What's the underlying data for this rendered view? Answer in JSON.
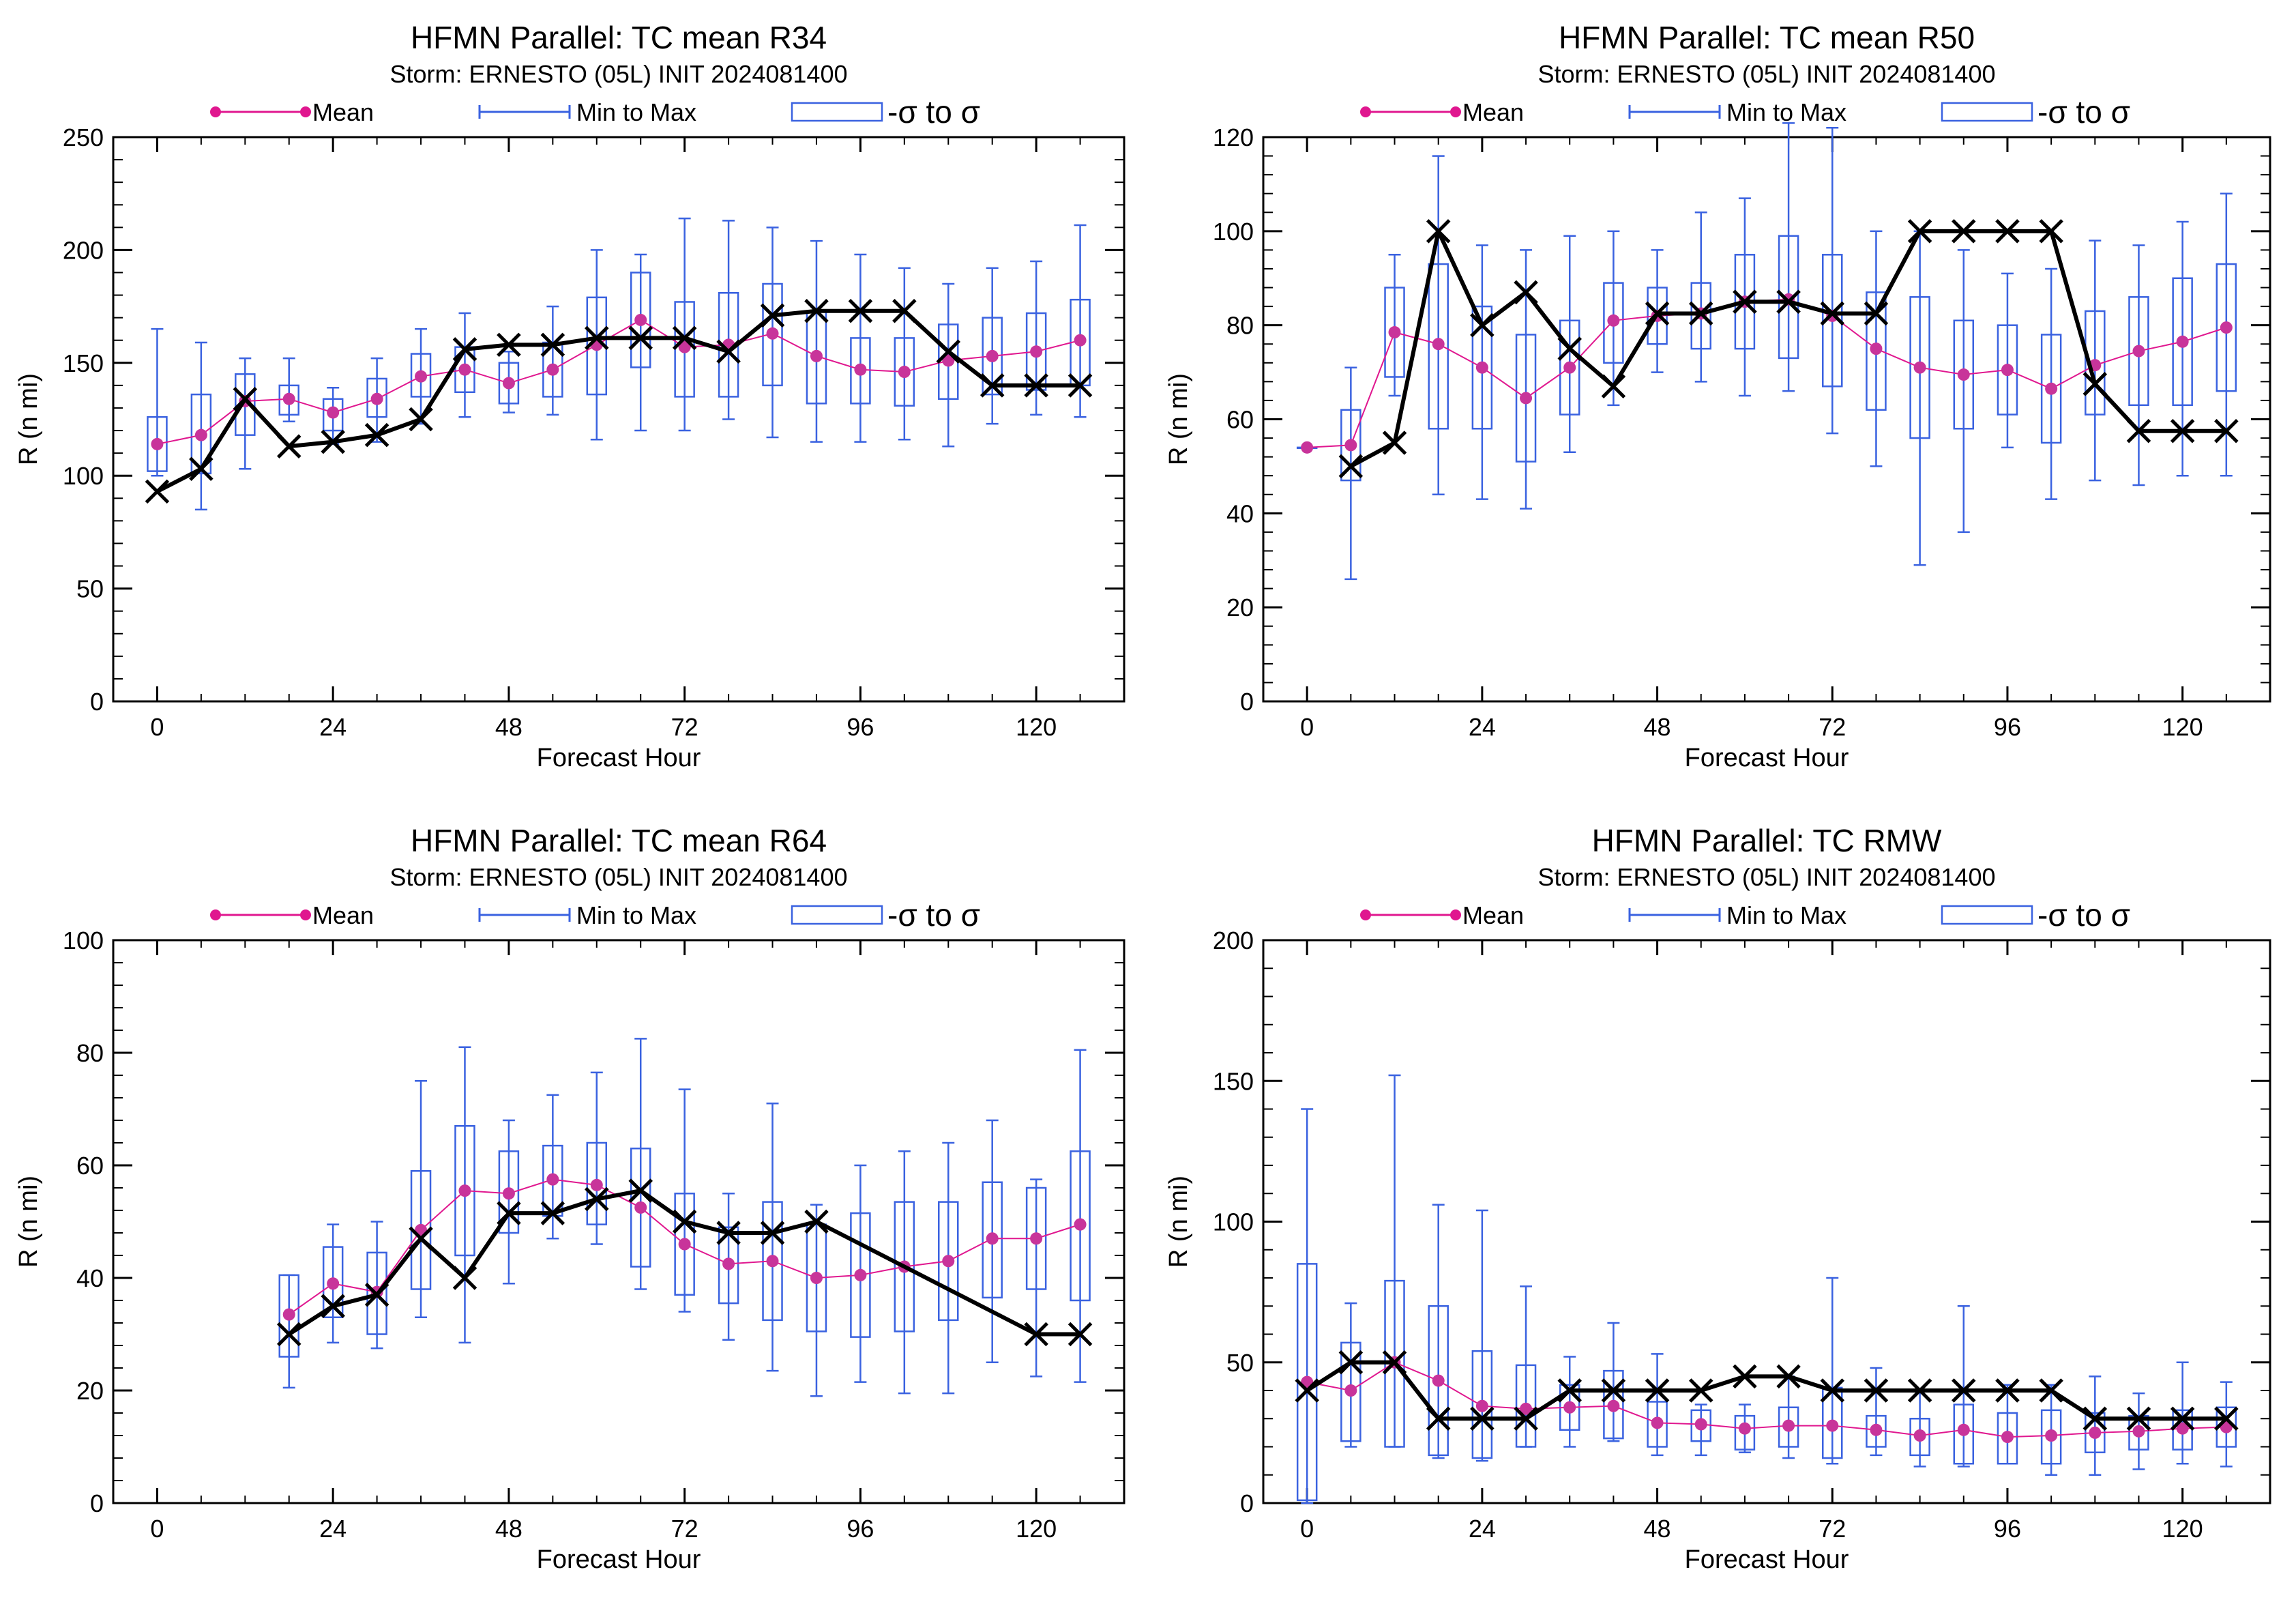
{
  "colors": {
    "mean": "#e0178f",
    "mean_marker": "#c8349a",
    "range": "#3a62e0",
    "best_track": "#000000",
    "axes": "#000000"
  },
  "legend": {
    "mean": "Mean",
    "range": "Min to Max",
    "sigma": "-σ to σ"
  },
  "chart_data": [
    {
      "type": "box",
      "title": "HFMN Parallel: TC mean R34",
      "subtitle": "Storm: ERNESTO (05L) INIT 2024081400",
      "xlabel": "Forecast Hour",
      "ylabel": "R (n mi)",
      "xlim": [
        -6,
        132
      ],
      "ylim": [
        0,
        250
      ],
      "xticks": [
        0,
        24,
        48,
        72,
        96,
        120
      ],
      "yticks": [
        0,
        50,
        100,
        150,
        200,
        250
      ],
      "series": {
        "mean": {
          "x": [
            0,
            6,
            12,
            18,
            24,
            30,
            36,
            42,
            48,
            54,
            60,
            66,
            72,
            78,
            84,
            90,
            96,
            102,
            108,
            114,
            120,
            126
          ],
          "y": [
            114,
            118,
            133,
            134,
            128,
            134,
            144,
            147,
            141,
            147,
            158,
            169,
            157,
            158,
            163,
            153,
            147,
            146,
            151,
            153,
            155,
            160
          ]
        },
        "range": {
          "x": [
            0,
            6,
            12,
            18,
            24,
            30,
            36,
            42,
            48,
            54,
            60,
            66,
            72,
            78,
            84,
            90,
            96,
            102,
            108,
            114,
            120,
            126
          ],
          "min": [
            100,
            85,
            103,
            124,
            114,
            115,
            123,
            126,
            128,
            127,
            116,
            120,
            120,
            125,
            117,
            115,
            115,
            116,
            113,
            123,
            127,
            126
          ],
          "max": [
            165,
            159,
            152,
            152,
            139,
            152,
            165,
            172,
            155,
            175,
            200,
            198,
            214,
            213,
            210,
            204,
            198,
            192,
            185,
            192,
            195,
            211
          ]
        },
        "sigma": {
          "x": [
            0,
            6,
            12,
            18,
            24,
            30,
            36,
            42,
            48,
            54,
            60,
            66,
            72,
            78,
            84,
            90,
            96,
            102,
            108,
            114,
            120,
            126
          ],
          "low": [
            102,
            101,
            118,
            127,
            120,
            126,
            135,
            137,
            132,
            135,
            136,
            148,
            135,
            135,
            140,
            132,
            132,
            131,
            134,
            136,
            138,
            140
          ],
          "high": [
            126,
            136,
            145,
            140,
            134,
            143,
            154,
            157,
            150,
            159,
            179,
            190,
            177,
            181,
            185,
            173,
            161,
            161,
            167,
            170,
            172,
            178
          ]
        },
        "best_track": {
          "x": [
            0,
            6,
            12,
            18,
            24,
            30,
            36,
            42,
            48,
            54,
            60,
            66,
            72,
            78,
            84,
            90,
            96,
            102,
            108,
            114,
            120,
            126
          ],
          "y": [
            93,
            103,
            134,
            113,
            115,
            118,
            125,
            156,
            158,
            158,
            161,
            161,
            161,
            155,
            171,
            173,
            173,
            173,
            155,
            140,
            140,
            140
          ]
        }
      }
    },
    {
      "type": "box",
      "title": "HFMN Parallel: TC mean R50",
      "subtitle": "Storm: ERNESTO (05L) INIT 2024081400",
      "xlabel": "Forecast Hour",
      "ylabel": "R (n mi)",
      "xlim": [
        -6,
        132
      ],
      "ylim": [
        0,
        120
      ],
      "xticks": [
        0,
        24,
        48,
        72,
        96,
        120
      ],
      "yticks": [
        0,
        20,
        40,
        60,
        80,
        100,
        120
      ],
      "series": {
        "mean": {
          "x": [
            0,
            6,
            12,
            18,
            24,
            30,
            36,
            42,
            48,
            54,
            60,
            66,
            72,
            78,
            84,
            90,
            96,
            102,
            108,
            114,
            120,
            126
          ],
          "y": [
            54,
            54.5,
            78.5,
            76,
            71,
            64.5,
            71,
            81,
            82,
            82.5,
            85,
            85.5,
            82,
            75,
            71,
            69.5,
            70.5,
            66.5,
            71.5,
            74.5,
            76.5,
            79.5
          ]
        },
        "range": {
          "x": [
            0,
            6,
            12,
            18,
            24,
            30,
            36,
            42,
            48,
            54,
            60,
            66,
            72,
            78,
            84,
            90,
            96,
            102,
            108,
            114,
            120,
            126
          ],
          "min": [
            54,
            26,
            65,
            44,
            43,
            41,
            53,
            63,
            70,
            68,
            65,
            66,
            57,
            50,
            29,
            36,
            54,
            43,
            47,
            46,
            48,
            48
          ],
          "max": [
            54,
            71,
            95,
            116,
            97,
            96,
            99,
            100,
            96,
            104,
            107,
            123,
            122,
            100,
            100,
            96,
            91,
            92,
            98,
            97,
            102,
            108
          ]
        },
        "sigma": {
          "x": [
            0,
            6,
            12,
            18,
            24,
            30,
            36,
            42,
            48,
            54,
            60,
            66,
            72,
            78,
            84,
            90,
            96,
            102,
            108,
            114,
            120,
            126
          ],
          "low": [
            54,
            47,
            69,
            58,
            58,
            51,
            61,
            72,
            76,
            75,
            75,
            73,
            67,
            62,
            56,
            58,
            61,
            55,
            61,
            63,
            63,
            66
          ],
          "high": [
            54,
            62,
            88,
            93,
            84,
            78,
            81,
            89,
            88,
            89,
            95,
            99,
            95,
            87,
            86,
            81,
            80,
            78,
            83,
            86,
            90,
            93
          ]
        },
        "best_track": {
          "x": [
            6,
            12,
            18,
            24,
            30,
            36,
            42,
            48,
            54,
            60,
            66,
            72,
            78,
            84,
            90,
            96,
            102,
            108,
            114,
            120,
            126
          ],
          "y": [
            50,
            55,
            100,
            80,
            87,
            75,
            67,
            82.5,
            82.5,
            85,
            85,
            82.5,
            82.5,
            100,
            100,
            100,
            100,
            67.5,
            57.5,
            57.5,
            57.5
          ]
        }
      }
    },
    {
      "type": "box",
      "title": "HFMN Parallel: TC mean R64",
      "subtitle": "Storm: ERNESTO (05L) INIT 2024081400",
      "xlabel": "Forecast Hour",
      "ylabel": "R (n mi)",
      "xlim": [
        -6,
        132
      ],
      "ylim": [
        0,
        100
      ],
      "xticks": [
        0,
        24,
        48,
        72,
        96,
        120
      ],
      "yticks": [
        0,
        20,
        40,
        60,
        80,
        100
      ],
      "series": {
        "mean": {
          "x": [
            18,
            24,
            30,
            36,
            42,
            48,
            54,
            60,
            66,
            72,
            78,
            84,
            90,
            96,
            102,
            108,
            114,
            120,
            126
          ],
          "y": [
            33.5,
            39,
            37.5,
            48.5,
            55.5,
            55,
            57.5,
            56.5,
            52.5,
            46,
            42.5,
            43,
            40,
            40.5,
            42,
            43,
            47,
            47,
            49.5
          ]
        },
        "range": {
          "x": [
            18,
            24,
            30,
            36,
            42,
            48,
            54,
            60,
            66,
            72,
            78,
            84,
            90,
            96,
            102,
            108,
            114,
            120,
            126
          ],
          "min": [
            20.5,
            28.5,
            27.5,
            33,
            28.5,
            39,
            47,
            46,
            38,
            34,
            29,
            23.5,
            19,
            21.5,
            19.5,
            19.5,
            25,
            22.5,
            21.5
          ],
          "max": [
            40.5,
            49.5,
            50,
            75,
            81,
            68,
            72.5,
            76.5,
            82.5,
            73.5,
            55,
            71,
            53,
            60,
            62.5,
            64,
            68,
            57.5,
            80.5
          ]
        },
        "sigma": {
          "x": [
            18,
            24,
            30,
            36,
            42,
            48,
            54,
            60,
            66,
            72,
            78,
            84,
            90,
            96,
            102,
            108,
            114,
            120,
            126
          ],
          "low": [
            26,
            33,
            30,
            38,
            44,
            48,
            51,
            49.5,
            42,
            37,
            35.5,
            32.5,
            30.5,
            29.5,
            30.5,
            32.5,
            36.5,
            38,
            36
          ],
          "high": [
            40.5,
            45.5,
            44.5,
            59,
            67,
            62.5,
            63.5,
            64,
            63,
            55,
            49,
            53.5,
            49.5,
            51.5,
            53.5,
            53.5,
            57,
            56,
            62.5
          ]
        },
        "best_track": {
          "x": [
            18,
            24,
            30,
            36,
            42,
            48,
            54,
            60,
            66,
            72,
            78,
            84,
            90,
            120,
            126
          ],
          "y": [
            30,
            35,
            37,
            47,
            40,
            51.5,
            51.5,
            54,
            55.5,
            50,
            48,
            48,
            50,
            30,
            30
          ]
        }
      }
    },
    {
      "type": "box",
      "title": "HFMN Parallel: TC RMW",
      "subtitle": "Storm: ERNESTO (05L) INIT 2024081400",
      "xlabel": "Forecast Hour",
      "ylabel": "R (n mi)",
      "xlim": [
        -6,
        132
      ],
      "ylim": [
        0,
        200
      ],
      "xticks": [
        0,
        24,
        48,
        72,
        96,
        120
      ],
      "yticks": [
        0,
        50,
        100,
        150,
        200
      ],
      "series": {
        "mean": {
          "x": [
            0,
            6,
            12,
            18,
            24,
            30,
            36,
            42,
            48,
            54,
            60,
            66,
            72,
            78,
            84,
            90,
            96,
            102,
            108,
            114,
            120,
            126
          ],
          "y": [
            43,
            40,
            50,
            43.5,
            34.5,
            33.5,
            34,
            34.5,
            28.5,
            28,
            26.5,
            27.5,
            27.5,
            26,
            24,
            26,
            23.5,
            24,
            25,
            25.5,
            26.5,
            27
          ]
        },
        "range": {
          "x": [
            0,
            6,
            12,
            18,
            24,
            30,
            36,
            42,
            48,
            54,
            60,
            66,
            72,
            78,
            84,
            90,
            96,
            102,
            108,
            114,
            120,
            126
          ],
          "min": [
            0,
            20,
            20,
            16,
            15,
            20,
            20,
            22,
            17,
            17,
            18,
            16,
            14,
            17,
            13,
            13,
            14,
            10,
            10,
            12,
            14,
            13
          ],
          "max": [
            140,
            71,
            152,
            106,
            104,
            77,
            52,
            64,
            53,
            35,
            35,
            45,
            80,
            48,
            40,
            70,
            42,
            42,
            45,
            39,
            50,
            43
          ]
        },
        "sigma": {
          "x": [
            0,
            6,
            12,
            18,
            24,
            30,
            36,
            42,
            48,
            54,
            60,
            66,
            72,
            78,
            84,
            90,
            96,
            102,
            108,
            114,
            120,
            126
          ],
          "low": [
            1,
            22,
            20,
            17,
            16,
            20,
            26,
            23,
            20,
            22,
            19,
            20,
            16,
            20,
            17,
            14,
            14,
            14,
            18,
            19,
            19,
            20
          ],
          "high": [
            85,
            57,
            79,
            70,
            54,
            49,
            42,
            47,
            36,
            33,
            31,
            34,
            41,
            31,
            30,
            35,
            32,
            33,
            32,
            31,
            33,
            34
          ]
        },
        "best_track": {
          "x": [
            0,
            6,
            12,
            18,
            24,
            30,
            36,
            42,
            48,
            54,
            60,
            66,
            72,
            78,
            84,
            90,
            96,
            102,
            108,
            114,
            120,
            126
          ],
          "y": [
            40,
            50,
            50,
            30,
            30,
            30,
            40,
            40,
            40,
            40,
            45,
            45,
            40,
            40,
            40,
            40,
            40,
            40,
            30,
            30,
            30,
            30
          ]
        }
      }
    }
  ]
}
